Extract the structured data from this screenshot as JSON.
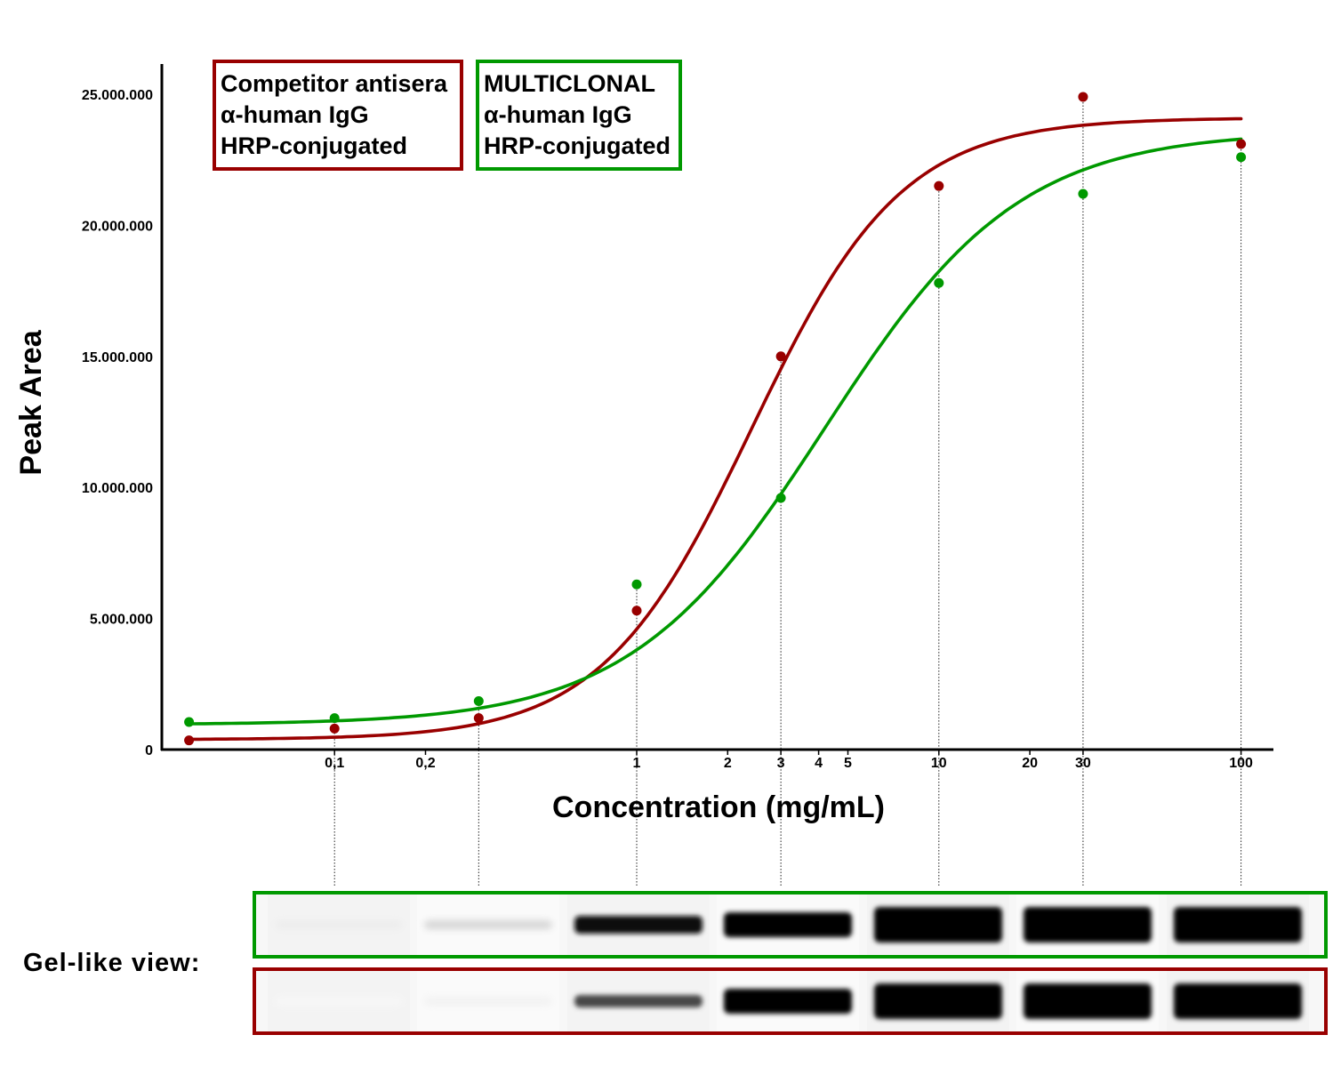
{
  "chart_data": {
    "type": "scatter",
    "xlabel": "Concentration (mg/mL)",
    "ylabel": "Peak Area",
    "x_scale": "log",
    "x_ticks": [
      {
        "value": 0.1,
        "label": "0,1"
      },
      {
        "value": 0.2,
        "label": "0,2"
      },
      {
        "value": 1,
        "label": "1"
      },
      {
        "value": 2,
        "label": "2"
      },
      {
        "value": 3,
        "label": "3"
      },
      {
        "value": 4,
        "label": "4"
      },
      {
        "value": 5,
        "label": "5"
      },
      {
        "value": 10,
        "label": "10"
      },
      {
        "value": 20,
        "label": "20"
      },
      {
        "value": 30,
        "label": "30"
      },
      {
        "value": 100,
        "label": "100"
      }
    ],
    "y_ticks": [
      {
        "value": 0,
        "label": "0"
      },
      {
        "value": 5000000,
        "label": "5.000.000"
      },
      {
        "value": 10000000,
        "label": "10.000.000"
      },
      {
        "value": 15000000,
        "label": "15.000.000"
      },
      {
        "value": 20000000,
        "label": "20.000.000"
      },
      {
        "value": 25000000,
        "label": "25.000.000"
      }
    ],
    "xlim": [
      0.031,
      115
    ],
    "ylim": [
      0,
      26200000
    ],
    "grid": false,
    "legend_position": "top-left",
    "series": [
      {
        "name": "Competitor antisera α-human IgG HRP-conjugated",
        "legend_lines": [
          "Competitor antisera",
          "α-human IgG",
          "HRP-conjugated"
        ],
        "color": "#990000",
        "points": [
          {
            "x": 0.033,
            "y": 350000
          },
          {
            "x": 0.1,
            "y": 800000
          },
          {
            "x": 0.3,
            "y": 1200000
          },
          {
            "x": 1,
            "y": 5300000
          },
          {
            "x": 3,
            "y": 15000000
          },
          {
            "x": 10,
            "y": 21500000
          },
          {
            "x": 30,
            "y": 24900000
          },
          {
            "x": 100,
            "y": 23100000
          }
        ],
        "fit": {
          "model": "4PL",
          "bottom": 380000,
          "top": 24100000,
          "ec50": 2.4,
          "hill": 1.75
        }
      },
      {
        "name": "MULTICLONAL α-human IgG HRP-conjugated",
        "legend_lines": [
          "MULTICLONAL",
          "α-human IgG",
          "HRP-conjugated"
        ],
        "color": "#009900",
        "points": [
          {
            "x": 0.033,
            "y": 1050000
          },
          {
            "x": 0.1,
            "y": 1200000
          },
          {
            "x": 0.3,
            "y": 1850000
          },
          {
            "x": 1,
            "y": 6300000
          },
          {
            "x": 3,
            "y": 9600000
          },
          {
            "x": 10,
            "y": 17800000
          },
          {
            "x": 30,
            "y": 21200000
          },
          {
            "x": 100,
            "y": 22600000
          }
        ],
        "fit": {
          "model": "4PL",
          "bottom": 950000,
          "top": 23600000,
          "ec50": 4.2,
          "hill": 1.35
        }
      }
    ],
    "gel_view": {
      "label": "Gel-like view:",
      "concentrations": [
        0.1,
        0.3,
        1,
        3,
        10,
        30,
        100
      ],
      "lanes": [
        {
          "series": "MULTICLONAL α-human IgG HRP-conjugated",
          "color": "#009900",
          "band_intensity": [
            0.07,
            0.16,
            0.95,
            1.0,
            1.0,
            1.0,
            1.0
          ]
        },
        {
          "series": "Competitor antisera α-human IgG HRP-conjugated",
          "color": "#990000",
          "band_intensity": [
            0.03,
            0.05,
            0.72,
            1.0,
            1.0,
            1.0,
            1.0
          ]
        }
      ]
    }
  }
}
